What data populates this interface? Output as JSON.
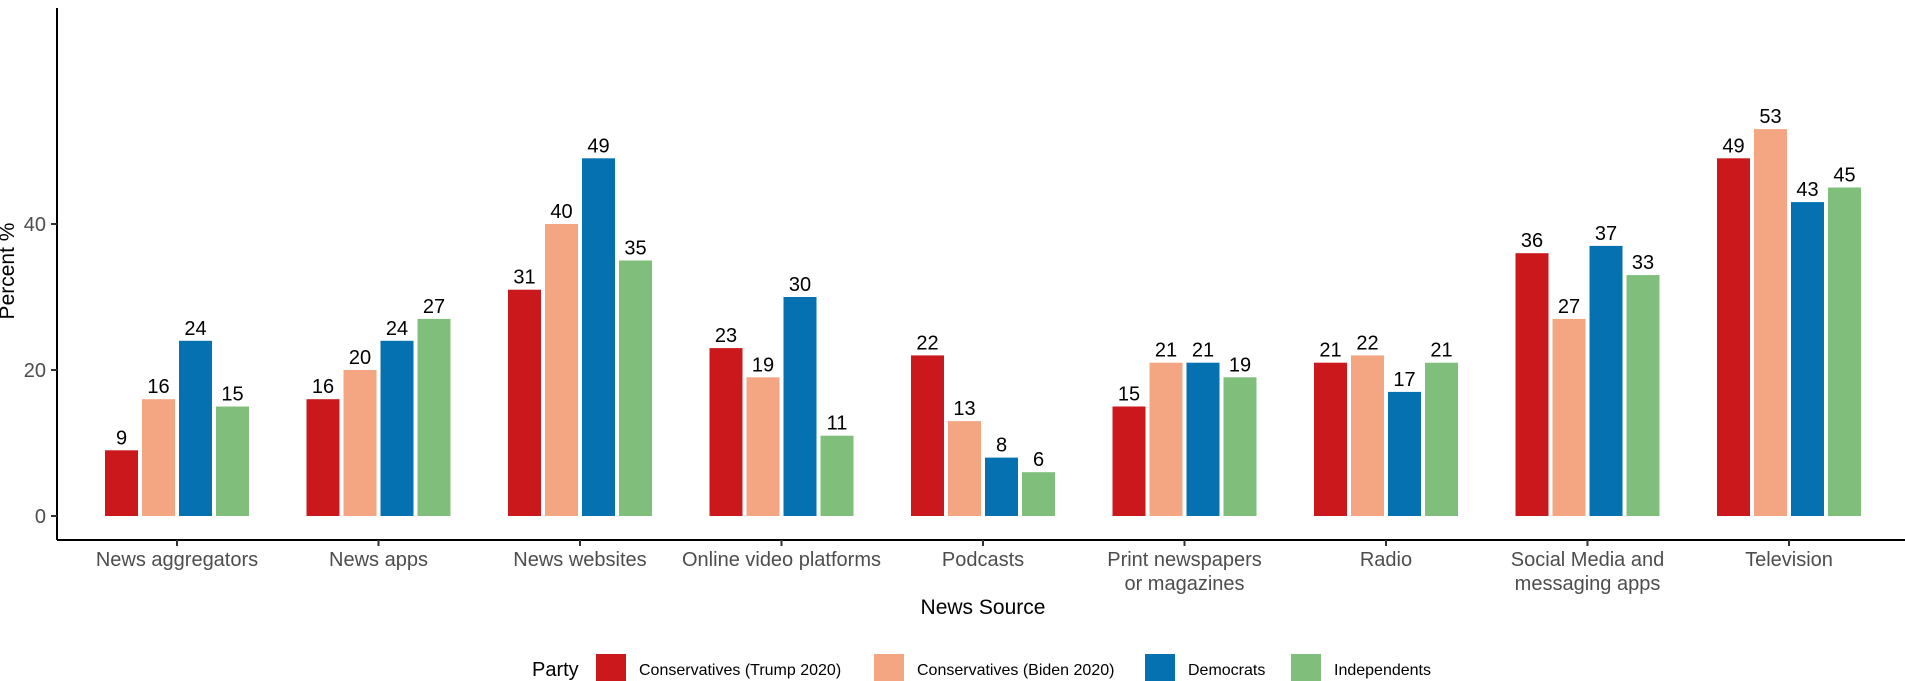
{
  "chart_data": {
    "type": "bar",
    "xlabel": "News Source",
    "ylabel": "Percent %",
    "ylim": [
      0,
      53
    ],
    "yticks": [
      0,
      20,
      40
    ],
    "grid": false,
    "legend_position": "bottom",
    "legend_title": "Party",
    "categories": [
      [
        "News aggregators"
      ],
      [
        "News apps"
      ],
      [
        "News websites"
      ],
      [
        "Online video platforms"
      ],
      [
        "Podcasts"
      ],
      [
        "Print newspapers",
        "or magazines"
      ],
      [
        "Radio"
      ],
      [
        "Social Media and",
        "messaging apps"
      ],
      [
        "Television"
      ]
    ],
    "series": [
      {
        "name": "Conservatives (Trump 2020)",
        "color": "#cb181d",
        "values": [
          9,
          16,
          31,
          23,
          22,
          15,
          21,
          36,
          49
        ]
      },
      {
        "name": "Conservatives (Biden 2020)",
        "color": "#f4a582",
        "values": [
          16,
          20,
          40,
          19,
          13,
          21,
          22,
          27,
          53
        ]
      },
      {
        "name": "Democrats",
        "color": "#0571b0",
        "values": [
          24,
          24,
          49,
          30,
          8,
          21,
          17,
          37,
          43
        ]
      },
      {
        "name": "Independents",
        "color": "#7fbf7b",
        "values": [
          15,
          27,
          35,
          11,
          6,
          19,
          21,
          33,
          45
        ]
      }
    ]
  }
}
